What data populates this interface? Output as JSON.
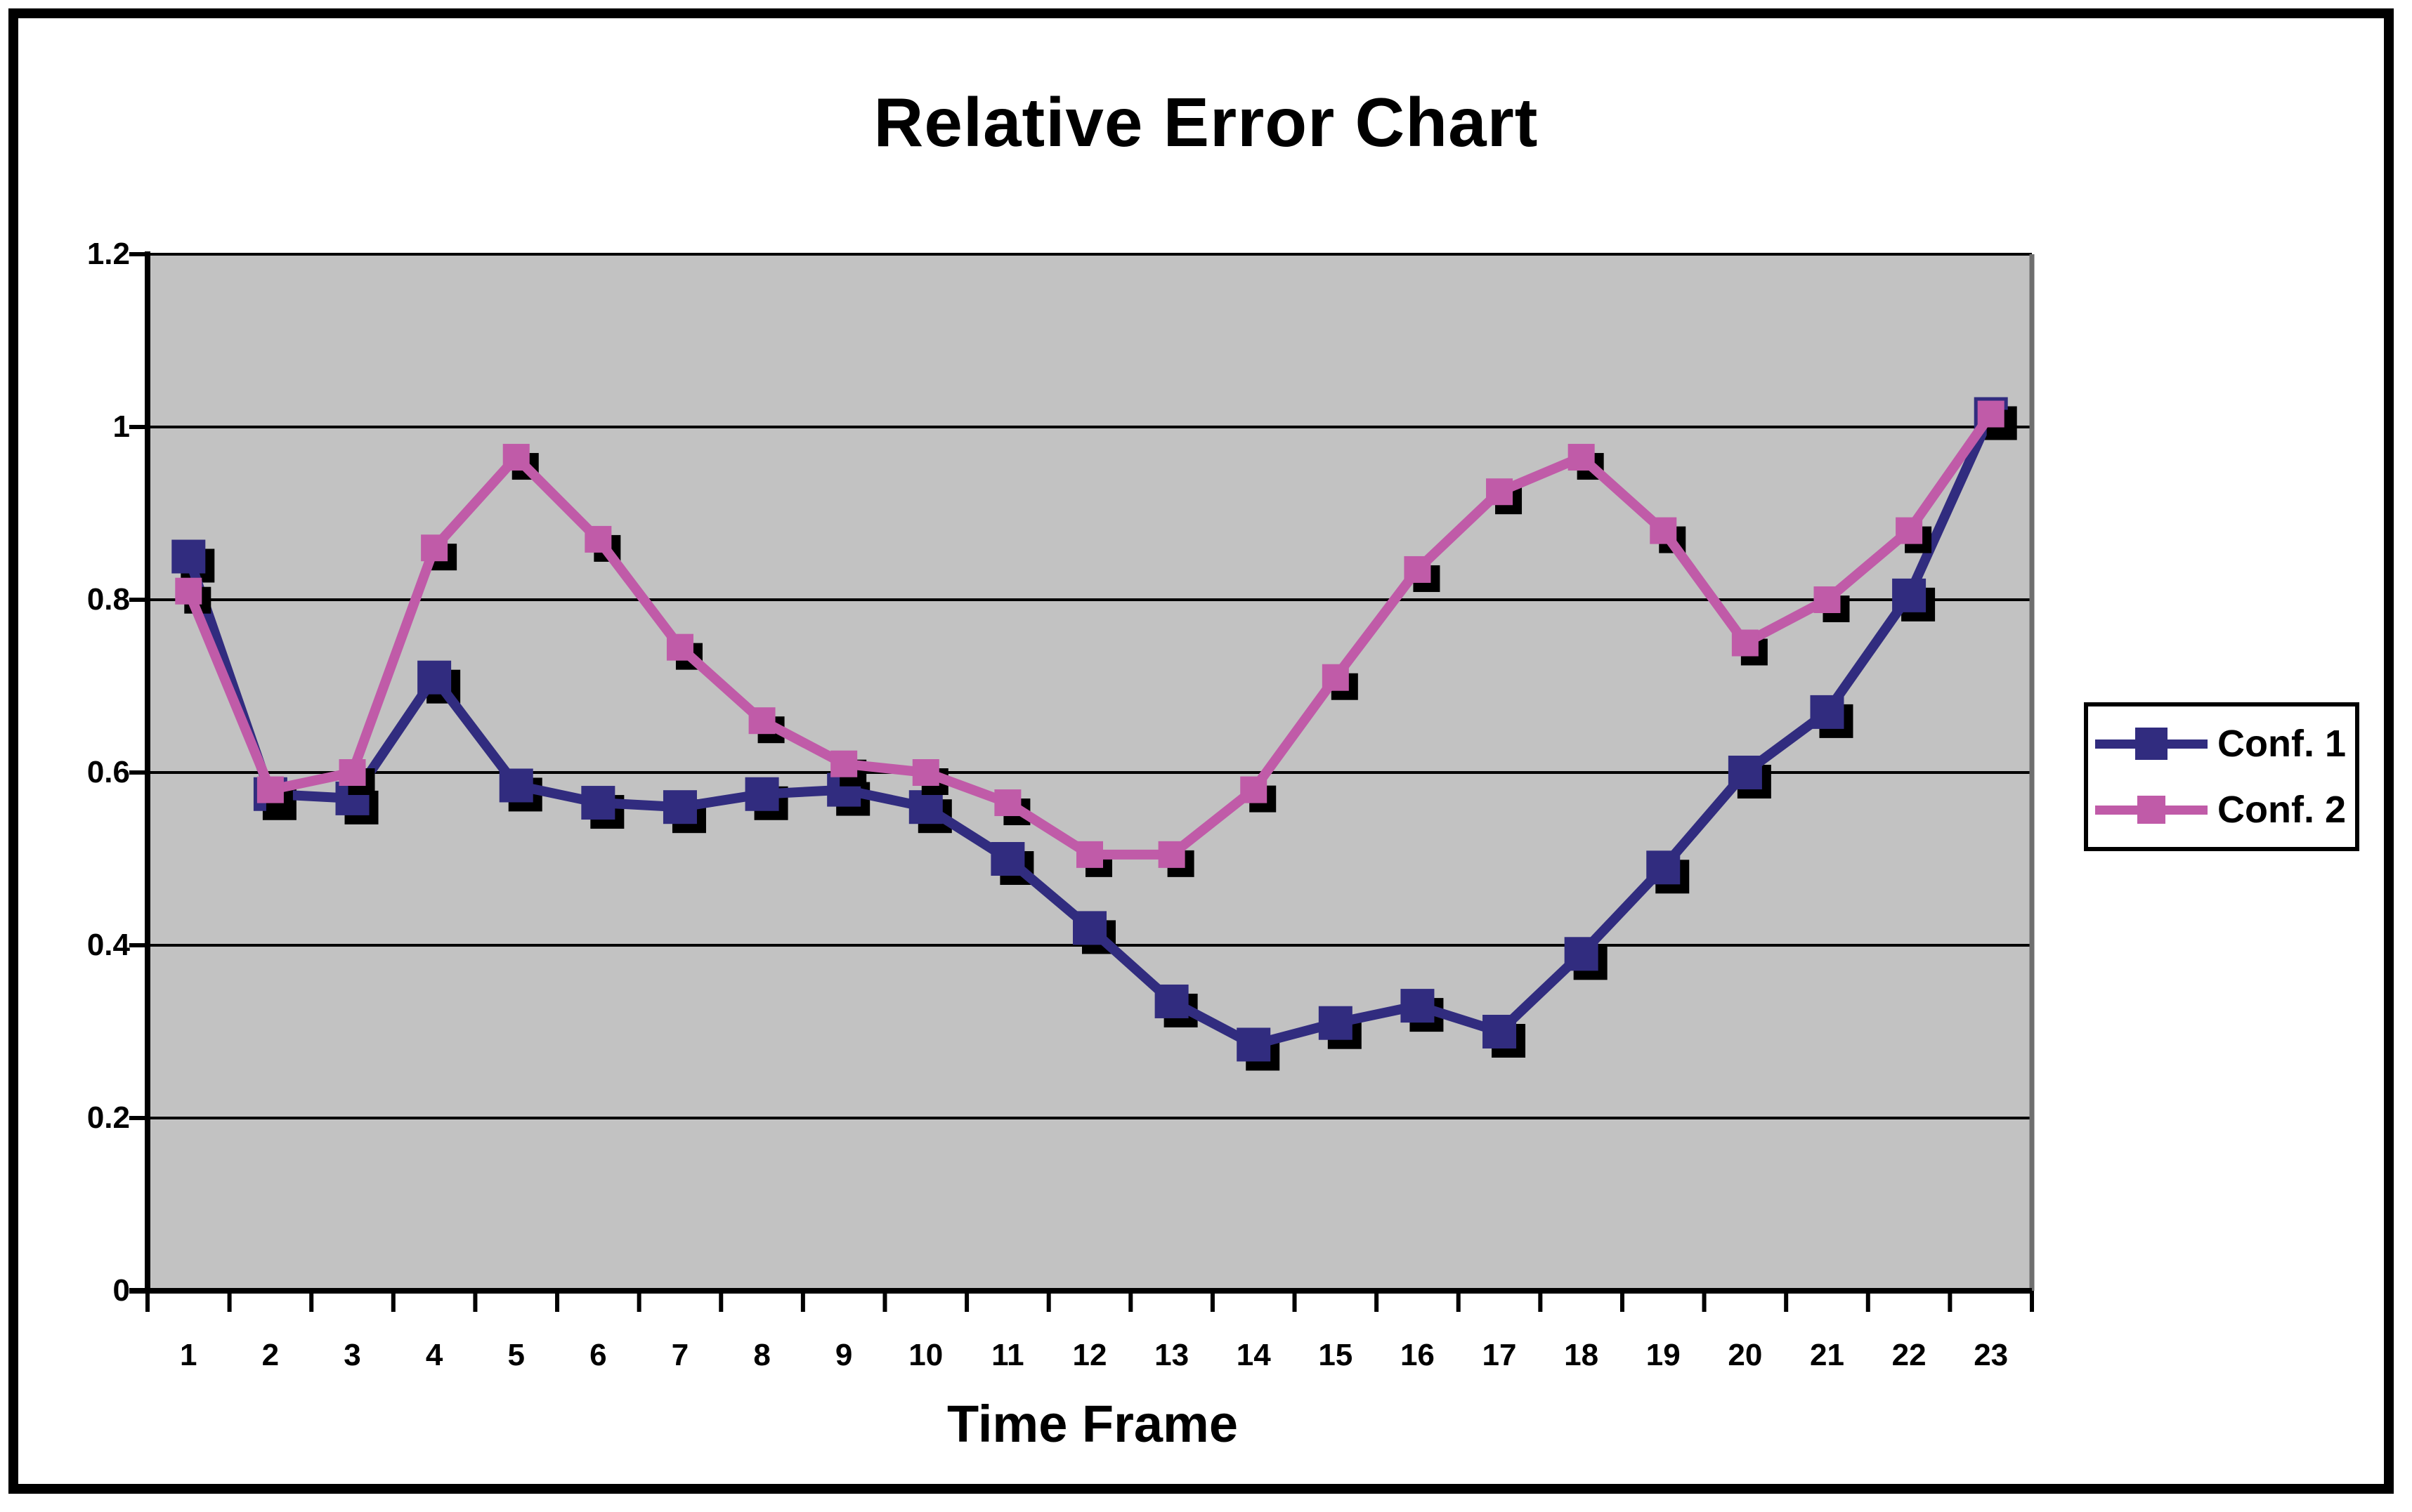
{
  "chart_data": {
    "type": "line",
    "title": "Relative Error Chart",
    "xlabel": "Time Frame",
    "ylabel": "",
    "ylim": [
      0,
      1.2
    ],
    "y_tick_labels": [
      "0",
      "0.2",
      "0.4",
      "0.6",
      "0.8",
      "1",
      "1.2"
    ],
    "y_tick_values": [
      0,
      0.2,
      0.4,
      0.6,
      0.8,
      1.0,
      1.2
    ],
    "categories": [
      "1",
      "2",
      "3",
      "4",
      "5",
      "6",
      "7",
      "8",
      "9",
      "10",
      "11",
      "12",
      "13",
      "14",
      "15",
      "16",
      "17",
      "18",
      "19",
      "20",
      "21",
      "22",
      "23"
    ],
    "grid": "horizontal-black-gridlines",
    "legend_position": "right",
    "plot_bg_color": "#c2c2c2",
    "gridline_color": "#000000",
    "axis_color": "#000000",
    "plot_right_edge_color": "#6e6e6e",
    "marker_shadow_color": "#000000",
    "series": [
      {
        "name": "Conf. 1",
        "color": "#312c7f",
        "marker": "square",
        "values": [
          0.85,
          0.575,
          0.57,
          0.71,
          0.585,
          0.565,
          0.56,
          0.575,
          0.58,
          0.56,
          0.5,
          0.42,
          0.335,
          0.285,
          0.31,
          0.33,
          0.3,
          0.39,
          0.49,
          0.6,
          0.67,
          0.805,
          1.015
        ]
      },
      {
        "name": "Conf. 2",
        "color": "#c05ba8",
        "marker": "square",
        "values": [
          0.81,
          0.58,
          0.6,
          0.86,
          0.965,
          0.87,
          0.745,
          0.66,
          0.61,
          0.6,
          0.565,
          0.505,
          0.505,
          0.58,
          0.71,
          0.835,
          0.925,
          0.965,
          0.88,
          0.75,
          0.8,
          0.88,
          1.015
        ]
      }
    ]
  }
}
